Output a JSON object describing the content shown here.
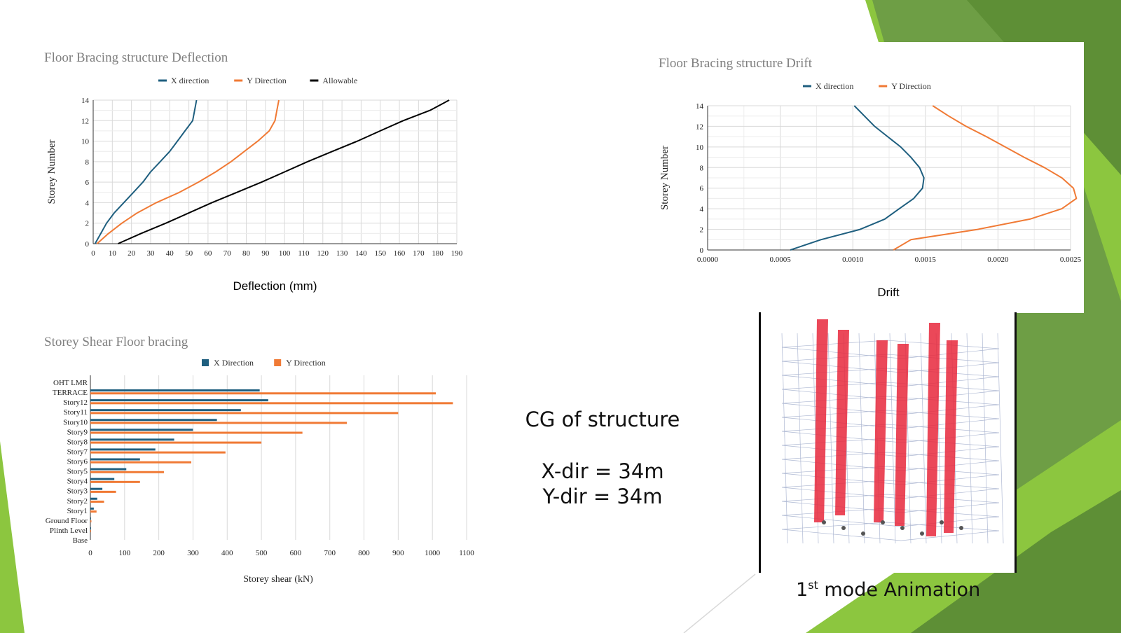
{
  "colors": {
    "x_series": "#1f5f7f",
    "y_series": "#f07a35",
    "allowable": "#000000",
    "green_dark": "#4f8f2a",
    "green_light": "#8cc63f",
    "grid": "#d9d9d9"
  },
  "chart_data": [
    {
      "type": "line",
      "title": "Floor Bracing structure Deflection",
      "xlabel": "Deflection (mm)",
      "ylabel": "Storey Number",
      "xlim": [
        0,
        190
      ],
      "ylim": [
        0,
        14
      ],
      "xticks": [
        "0",
        "10",
        "20",
        "30",
        "40",
        "50",
        "60",
        "70",
        "80",
        "90",
        "100",
        "110",
        "120",
        "130",
        "140",
        "150",
        "160",
        "170",
        "180",
        "190"
      ],
      "yticks": [
        "0",
        "2",
        "4",
        "6",
        "8",
        "10",
        "12",
        "14"
      ],
      "legend_position": "top",
      "grid": true,
      "series": [
        {
          "name": "X direction",
          "color": "#1f5f7f",
          "points": [
            [
              1,
              0
            ],
            [
              4,
              1
            ],
            [
              7,
              2
            ],
            [
              11,
              3
            ],
            [
              16,
              4
            ],
            [
              21,
              5
            ],
            [
              26,
              6
            ],
            [
              30,
              7
            ],
            [
              35,
              8
            ],
            [
              40,
              9
            ],
            [
              44,
              10
            ],
            [
              48,
              11
            ],
            [
              52,
              12
            ],
            [
              53,
              13
            ],
            [
              54,
              14
            ]
          ]
        },
        {
          "name": "Y Direction",
          "color": "#f07a35",
          "points": [
            [
              2,
              0
            ],
            [
              8,
              1
            ],
            [
              15,
              2
            ],
            [
              23,
              3
            ],
            [
              33,
              4
            ],
            [
              45,
              5
            ],
            [
              55,
              6
            ],
            [
              64,
              7
            ],
            [
              72,
              8
            ],
            [
              79,
              9
            ],
            [
              86,
              10
            ],
            [
              92,
              11
            ],
            [
              95,
              12
            ],
            [
              96,
              13
            ],
            [
              97,
              14
            ]
          ]
        },
        {
          "name": "Allowable",
          "color": "#000000",
          "points": [
            [
              13,
              0
            ],
            [
              25,
              1
            ],
            [
              38,
              2
            ],
            [
              50,
              3
            ],
            [
              62,
              4
            ],
            [
              75,
              5
            ],
            [
              88,
              6
            ],
            [
              100,
              7
            ],
            [
              112,
              8
            ],
            [
              125,
              9
            ],
            [
              138,
              10
            ],
            [
              150,
              11
            ],
            [
              162,
              12
            ],
            [
              176,
              13
            ],
            [
              186,
              14
            ]
          ]
        }
      ]
    },
    {
      "type": "line",
      "title": "Floor Bracing structure Drift",
      "xlabel": "Drift",
      "ylabel": "Storey Number",
      "xlim": [
        0,
        0.0025
      ],
      "ylim": [
        0,
        14
      ],
      "xticks": [
        "0.0000",
        "0.0005",
        "0.0010",
        "0.0015",
        "0.0020",
        "0.0025"
      ],
      "yticks": [
        "0",
        "2",
        "4",
        "6",
        "8",
        "10",
        "12",
        "14"
      ],
      "legend_position": "top",
      "grid": true,
      "series": [
        {
          "name": "X direction",
          "color": "#1f5f7f",
          "points": [
            [
              0.00057,
              0
            ],
            [
              0.00078,
              1
            ],
            [
              0.00105,
              2
            ],
            [
              0.00122,
              3
            ],
            [
              0.00132,
              4
            ],
            [
              0.00142,
              5
            ],
            [
              0.00148,
              6
            ],
            [
              0.00149,
              7
            ],
            [
              0.00146,
              8
            ],
            [
              0.0014,
              9
            ],
            [
              0.00133,
              10
            ],
            [
              0.00124,
              11
            ],
            [
              0.00115,
              12
            ],
            [
              0.00108,
              13
            ],
            [
              0.00101,
              14
            ]
          ]
        },
        {
          "name": "Y Direction",
          "color": "#f07a35",
          "points": [
            [
              0.00128,
              0
            ],
            [
              0.0014,
              1
            ],
            [
              0.00186,
              2
            ],
            [
              0.00222,
              3
            ],
            [
              0.00244,
              4
            ],
            [
              0.00254,
              5
            ],
            [
              0.00252,
              6
            ],
            [
              0.00244,
              7
            ],
            [
              0.00232,
              8
            ],
            [
              0.00218,
              9
            ],
            [
              0.00205,
              10
            ],
            [
              0.00192,
              11
            ],
            [
              0.00178,
              12
            ],
            [
              0.00166,
              13
            ],
            [
              0.00155,
              14
            ]
          ]
        }
      ]
    },
    {
      "type": "bar",
      "orientation": "horizontal",
      "title": "Storey Shear Floor bracing",
      "xlabel": "Storey shear (kN)",
      "ylabel": "",
      "xlim": [
        0,
        1100
      ],
      "xticks": [
        "0",
        "100",
        "200",
        "300",
        "400",
        "500",
        "600",
        "700",
        "800",
        "900",
        "1000",
        "1100"
      ],
      "legend_position": "top",
      "grid": true,
      "categories": [
        "OHT LMR",
        "TERRACE",
        "Story12",
        "Story11",
        "Story10",
        "Story9",
        "Story8",
        "Story7",
        "Story6",
        "Story5",
        "Story4",
        "Story3",
        "Story2",
        "Story1",
        "Ground Floor",
        "Plinth Level",
        "Base"
      ],
      "series": [
        {
          "name": "X Direction",
          "color": "#1f5f7f",
          "values": [
            0,
            495,
            520,
            440,
            370,
            300,
            245,
            190,
            145,
            105,
            70,
            35,
            20,
            10,
            2,
            1,
            0
          ]
        },
        {
          "name": "Y Direction",
          "color": "#f07a35",
          "values": [
            0,
            1010,
            1060,
            900,
            750,
            620,
            500,
            395,
            295,
            215,
            145,
            75,
            40,
            18,
            3,
            1,
            0
          ]
        }
      ]
    }
  ],
  "cg": {
    "title": "CG of structure",
    "x_dir": "X-dir = 34m",
    "y_dir": "Y-dir = 34m"
  },
  "mode_caption": {
    "ordinal": "1",
    "suffix": "st",
    "text": " mode Animation"
  }
}
